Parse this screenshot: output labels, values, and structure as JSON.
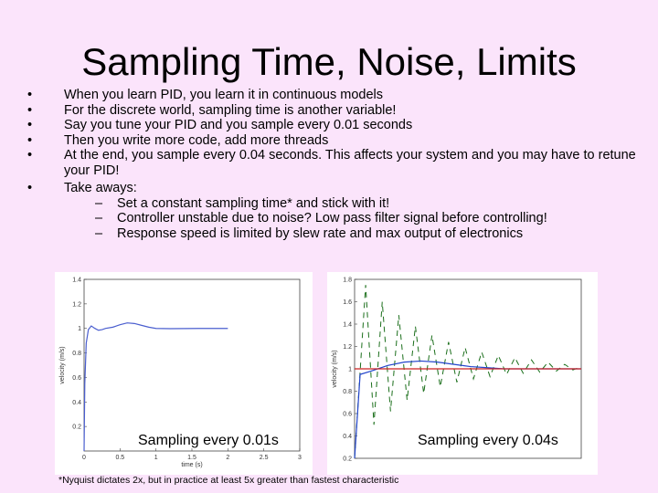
{
  "slide": {
    "title": "Sampling Time, Noise, Limits",
    "bullets": [
      "When you learn PID, you learn it in continuous models",
      "For the discrete world, sampling time is another variable!",
      "Say you tune your PID and you sample every 0.01 seconds",
      "Then you write more code, add more threads",
      "At the end, you sample every 0.04 seconds.  This affects your system and you may have to retune your PID!",
      "Take aways:"
    ],
    "subbullets": [
      "Set a constant sampling time* and stick with it!",
      "Controller unstable due to noise?  Low pass filter signal before controlling!",
      "Response speed is limited by slew rate and max output of electronics"
    ],
    "bullet_glyph": "•",
    "dash_glyph": "–",
    "footnote": "*Nyquist dictates 2x, but in practice at least 5x greater than fastest characteristic"
  },
  "chart_data": [
    {
      "type": "line",
      "caption": "Sampling every 0.01s",
      "xlabel": "time (s)",
      "ylabel": "velocity (m/s)",
      "xlim": [
        0,
        3
      ],
      "ylim": [
        0,
        1.4
      ],
      "xticks": [
        "0",
        "0.5",
        "1",
        "1.5",
        "2",
        "2.5",
        "3"
      ],
      "yticks": [
        "0.2",
        "0.4",
        "0.6",
        "0.8",
        "1",
        "1.2",
        "1.4"
      ],
      "series": [
        {
          "color": "#4a5ecf",
          "x": [
            0,
            0.01,
            0.03,
            0.06,
            0.1,
            0.15,
            0.2,
            0.25,
            0.3,
            0.4,
            0.5,
            0.6,
            0.7,
            0.8,
            0.9,
            1.0,
            1.2,
            1.4,
            1.6,
            1.8,
            2.0
          ],
          "y": [
            0,
            0.55,
            0.88,
            0.99,
            1.02,
            1.0,
            0.985,
            0.99,
            1.0,
            1.01,
            1.03,
            1.045,
            1.04,
            1.025,
            1.01,
            1.0,
            0.998,
            0.999,
            1.0,
            1.0,
            1.0
          ]
        }
      ]
    },
    {
      "type": "line",
      "caption": "Sampling every 0.04s",
      "xlabel": "",
      "ylabel": "velocity (m/s)",
      "ylim": [
        0.2,
        1.8
      ],
      "yticks": [
        "0.2",
        "0.4",
        "0.6",
        "0.8",
        "1",
        "1.2",
        "1.4",
        "1.6",
        "1.8"
      ],
      "series": [
        {
          "color": "#1a6e1a",
          "dashed": true,
          "x": [
            0,
            0.2,
            0.35,
            0.5,
            0.65,
            0.8,
            0.95,
            1.1,
            1.25,
            1.4,
            1.55,
            1.7,
            1.85,
            2.0,
            2.15,
            2.3,
            2.45,
            2.6,
            2.75,
            2.9,
            3.05,
            3.2,
            3.35,
            3.5,
            3.65,
            3.8,
            3.95,
            4.1
          ],
          "y": [
            0.2,
            1.75,
            0.5,
            1.6,
            0.62,
            1.48,
            0.72,
            1.38,
            0.78,
            1.3,
            0.84,
            1.24,
            0.88,
            1.19,
            0.91,
            1.15,
            0.93,
            1.12,
            0.95,
            1.1,
            0.96,
            1.08,
            0.97,
            1.06,
            0.98,
            1.04,
            0.99,
            1.02
          ]
        },
        {
          "color": "#2244cc",
          "x": [
            0,
            0.1,
            0.3,
            0.6,
            0.9,
            1.2,
            1.5,
            1.8,
            2.1,
            2.4,
            2.7,
            3.0,
            3.3,
            3.6,
            3.9,
            4.1
          ],
          "y": [
            0.2,
            0.95,
            0.98,
            1.03,
            1.06,
            1.07,
            1.06,
            1.04,
            1.02,
            1.01,
            1.0,
            1.0,
            1.0,
            1.0,
            1.0,
            1.0
          ]
        },
        {
          "color": "#cc2222",
          "x": [
            0,
            4.1
          ],
          "y": [
            1.0,
            1.0
          ]
        }
      ]
    }
  ]
}
